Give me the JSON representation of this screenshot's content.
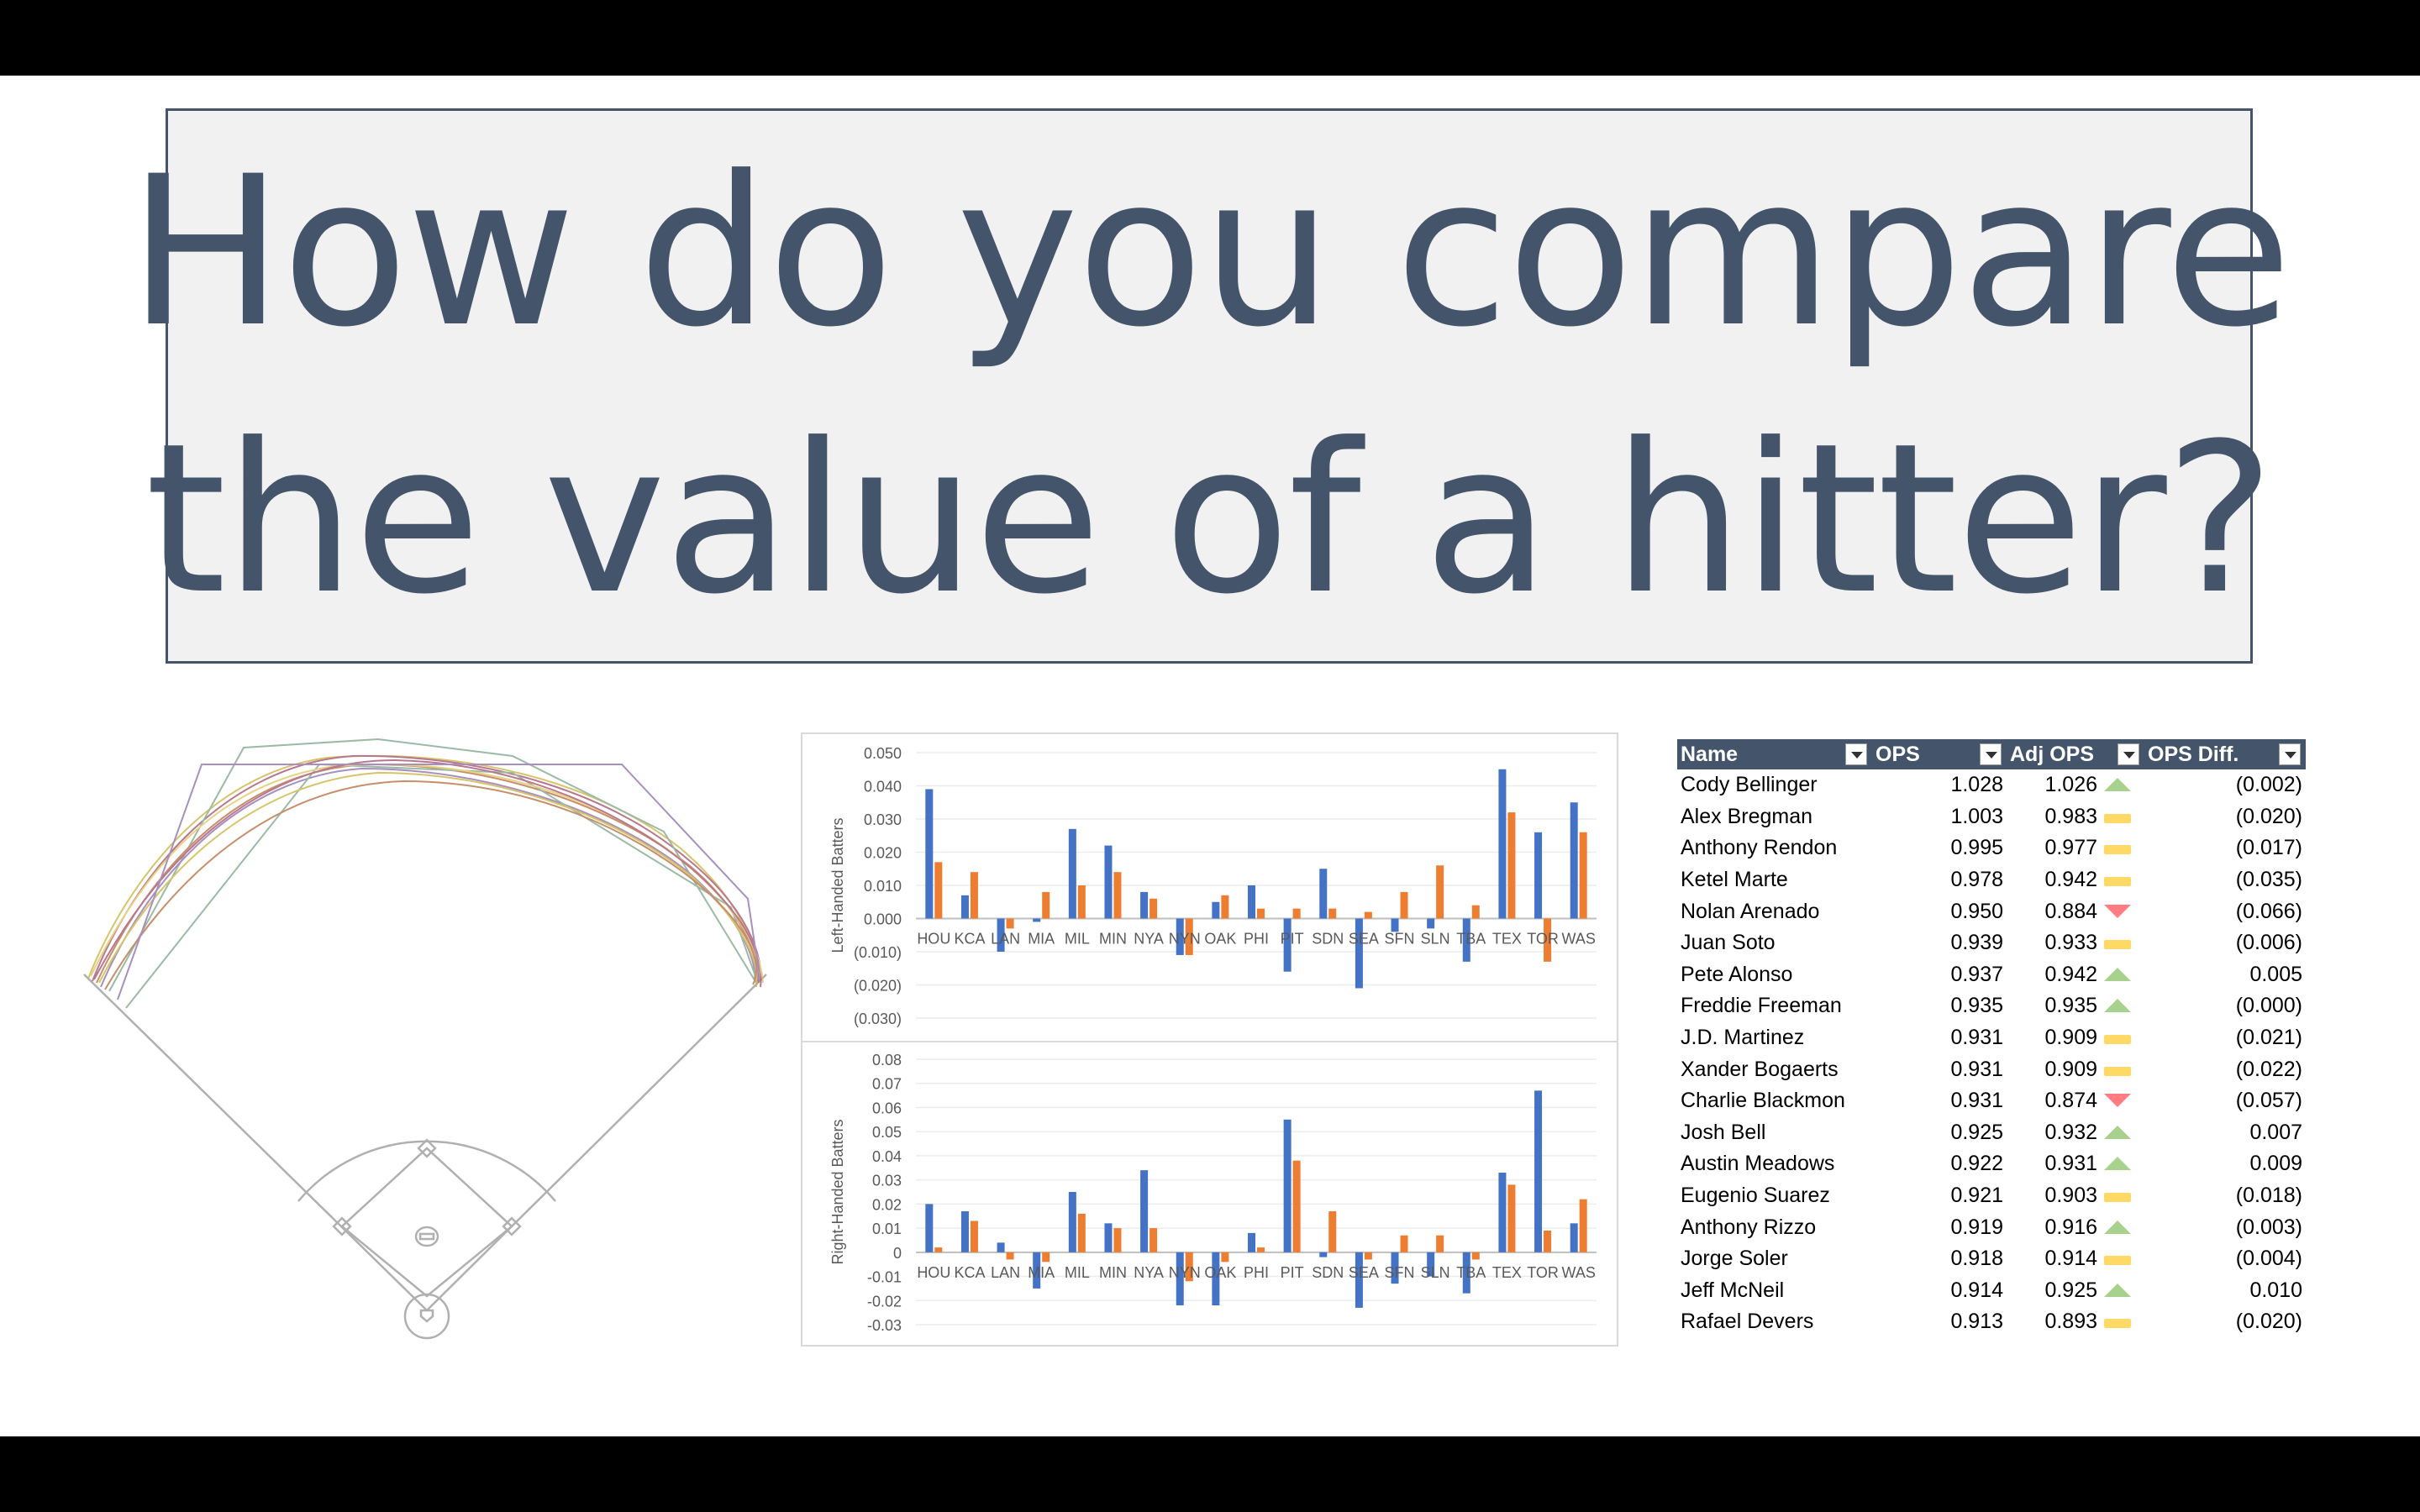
{
  "slide": {
    "title_line1": "How do you compare",
    "title_line2": "the value of a hitter?",
    "title_color": "#44546a"
  },
  "field_diagram": {
    "icon": "baseball-field-icon",
    "spray_line_colors": [
      "#c9b13a",
      "#a04a6a",
      "#7aa387",
      "#b46a3c",
      "#8b6aa6",
      "#e0c25a"
    ]
  },
  "chart_data": [
    {
      "type": "bar",
      "ylabel": "Left-Handed Batters",
      "categories": [
        "HOU",
        "KCA",
        "LAN",
        "MIA",
        "MIL",
        "MIN",
        "NYA",
        "NYN",
        "OAK",
        "PHI",
        "PIT",
        "SDN",
        "SEA",
        "SFN",
        "SLN",
        "TBA",
        "TEX",
        "TOR",
        "WAS"
      ],
      "series": [
        {
          "color": "#4472c4",
          "values": [
            0.039,
            0.007,
            -0.01,
            -0.001,
            0.027,
            0.022,
            0.008,
            -0.011,
            0.005,
            0.01,
            -0.016,
            0.015,
            -0.021,
            -0.004,
            -0.003,
            -0.013,
            0.045,
            0.026,
            0.035
          ]
        },
        {
          "color": "#ed7d31",
          "values": [
            0.017,
            0.014,
            -0.003,
            0.008,
            0.01,
            0.014,
            0.006,
            -0.011,
            0.007,
            0.003,
            0.003,
            0.003,
            0.002,
            0.008,
            0.016,
            0.004,
            0.032,
            -0.013,
            0.026
          ]
        }
      ],
      "yticks": [
        "0.050",
        "0.040",
        "0.030",
        "0.020",
        "0.010",
        "0.000",
        "(0.010)",
        "(0.020)",
        "(0.030)"
      ],
      "ylim": [
        -0.03,
        0.05
      ]
    },
    {
      "type": "bar",
      "ylabel": "Right-Handed Batters",
      "categories": [
        "HOU",
        "KCA",
        "LAN",
        "MIA",
        "MIL",
        "MIN",
        "NYA",
        "NYN",
        "OAK",
        "PHI",
        "PIT",
        "SDN",
        "SEA",
        "SFN",
        "SLN",
        "TBA",
        "TEX",
        "TOR",
        "WAS"
      ],
      "series": [
        {
          "color": "#4472c4",
          "values": [
            0.02,
            0.017,
            0.004,
            -0.015,
            0.025,
            0.012,
            0.034,
            -0.022,
            -0.022,
            0.008,
            0.055,
            -0.002,
            -0.023,
            -0.013,
            -0.01,
            -0.017,
            0.033,
            0.067,
            0.012
          ]
        },
        {
          "color": "#ed7d31",
          "values": [
            0.002,
            0.013,
            -0.003,
            -0.004,
            0.016,
            0.01,
            0.01,
            -0.012,
            -0.004,
            0.002,
            0.038,
            0.017,
            -0.003,
            0.007,
            0.007,
            -0.003,
            0.028,
            0.009,
            0.022
          ]
        }
      ],
      "yticks": [
        "0.08",
        "0.07",
        "0.06",
        "0.05",
        "0.04",
        "0.03",
        "0.02",
        "0.01",
        "0",
        "-0.01",
        "-0.02",
        "-0.03"
      ],
      "ylim": [
        -0.03,
        0.08
      ]
    }
  ],
  "table": {
    "headers": [
      "Name",
      "OPS",
      "Adj OPS",
      "OPS Diff."
    ],
    "indicator_colors": {
      "up": "#a9d18e",
      "down": "#ff7c80",
      "flat": "#ffd966"
    },
    "rows": [
      {
        "name": "Cody Bellinger",
        "ops": "1.028",
        "adj": "1.026",
        "ind": "up",
        "diff": "(0.002)"
      },
      {
        "name": "Alex Bregman",
        "ops": "1.003",
        "adj": "0.983",
        "ind": "flat",
        "diff": "(0.020)"
      },
      {
        "name": "Anthony Rendon",
        "ops": "0.995",
        "adj": "0.977",
        "ind": "flat",
        "diff": "(0.017)"
      },
      {
        "name": "Ketel Marte",
        "ops": "0.978",
        "adj": "0.942",
        "ind": "flat",
        "diff": "(0.035)"
      },
      {
        "name": "Nolan Arenado",
        "ops": "0.950",
        "adj": "0.884",
        "ind": "down",
        "diff": "(0.066)"
      },
      {
        "name": "Juan Soto",
        "ops": "0.939",
        "adj": "0.933",
        "ind": "flat",
        "diff": "(0.006)"
      },
      {
        "name": "Pete Alonso",
        "ops": "0.937",
        "adj": "0.942",
        "ind": "up",
        "diff": "0.005"
      },
      {
        "name": "Freddie Freeman",
        "ops": "0.935",
        "adj": "0.935",
        "ind": "up",
        "diff": "(0.000)"
      },
      {
        "name": "J.D. Martinez",
        "ops": "0.931",
        "adj": "0.909",
        "ind": "flat",
        "diff": "(0.021)"
      },
      {
        "name": "Xander Bogaerts",
        "ops": "0.931",
        "adj": "0.909",
        "ind": "flat",
        "diff": "(0.022)"
      },
      {
        "name": "Charlie Blackmon",
        "ops": "0.931",
        "adj": "0.874",
        "ind": "down",
        "diff": "(0.057)"
      },
      {
        "name": "Josh Bell",
        "ops": "0.925",
        "adj": "0.932",
        "ind": "up",
        "diff": "0.007"
      },
      {
        "name": "Austin Meadows",
        "ops": "0.922",
        "adj": "0.931",
        "ind": "up",
        "diff": "0.009"
      },
      {
        "name": "Eugenio Suarez",
        "ops": "0.921",
        "adj": "0.903",
        "ind": "flat",
        "diff": "(0.018)"
      },
      {
        "name": "Anthony Rizzo",
        "ops": "0.919",
        "adj": "0.916",
        "ind": "up",
        "diff": "(0.003)"
      },
      {
        "name": "Jorge Soler",
        "ops": "0.918",
        "adj": "0.914",
        "ind": "flat",
        "diff": "(0.004)"
      },
      {
        "name": "Jeff McNeil",
        "ops": "0.914",
        "adj": "0.925",
        "ind": "up",
        "diff": "0.010"
      },
      {
        "name": "Rafael Devers",
        "ops": "0.913",
        "adj": "0.893",
        "ind": "flat",
        "diff": "(0.020)"
      }
    ]
  }
}
